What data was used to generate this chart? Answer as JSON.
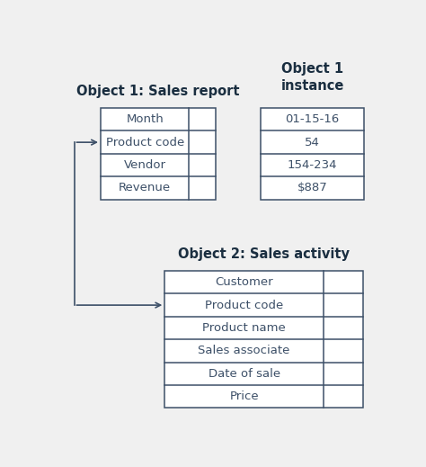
{
  "bg_color": "#f0f0f0",
  "table_border_color": "#3d5068",
  "text_color": "#3d5068",
  "title_color": "#1a2e40",
  "arrow_color": "#3d5068",
  "obj1_title": "Object 1: Sales report",
  "obj1_rows": [
    "Month",
    "Product code",
    "Vendor",
    "Revenue"
  ],
  "obj1_col_split": 0.77,
  "inst_title": "Object 1\ninstance",
  "inst_values": [
    "01-15-16",
    "54",
    "154-234",
    "$887"
  ],
  "obj2_title": "Object 2: Sales activity",
  "obj2_rows": [
    "Customer",
    "Product code",
    "Product name",
    "Sales associate",
    "Date of sale",
    "Price"
  ],
  "obj2_col_split": 0.8,
  "title_fontsize": 10.5,
  "cell_fontsize": 9.5,
  "lw": 1.1
}
